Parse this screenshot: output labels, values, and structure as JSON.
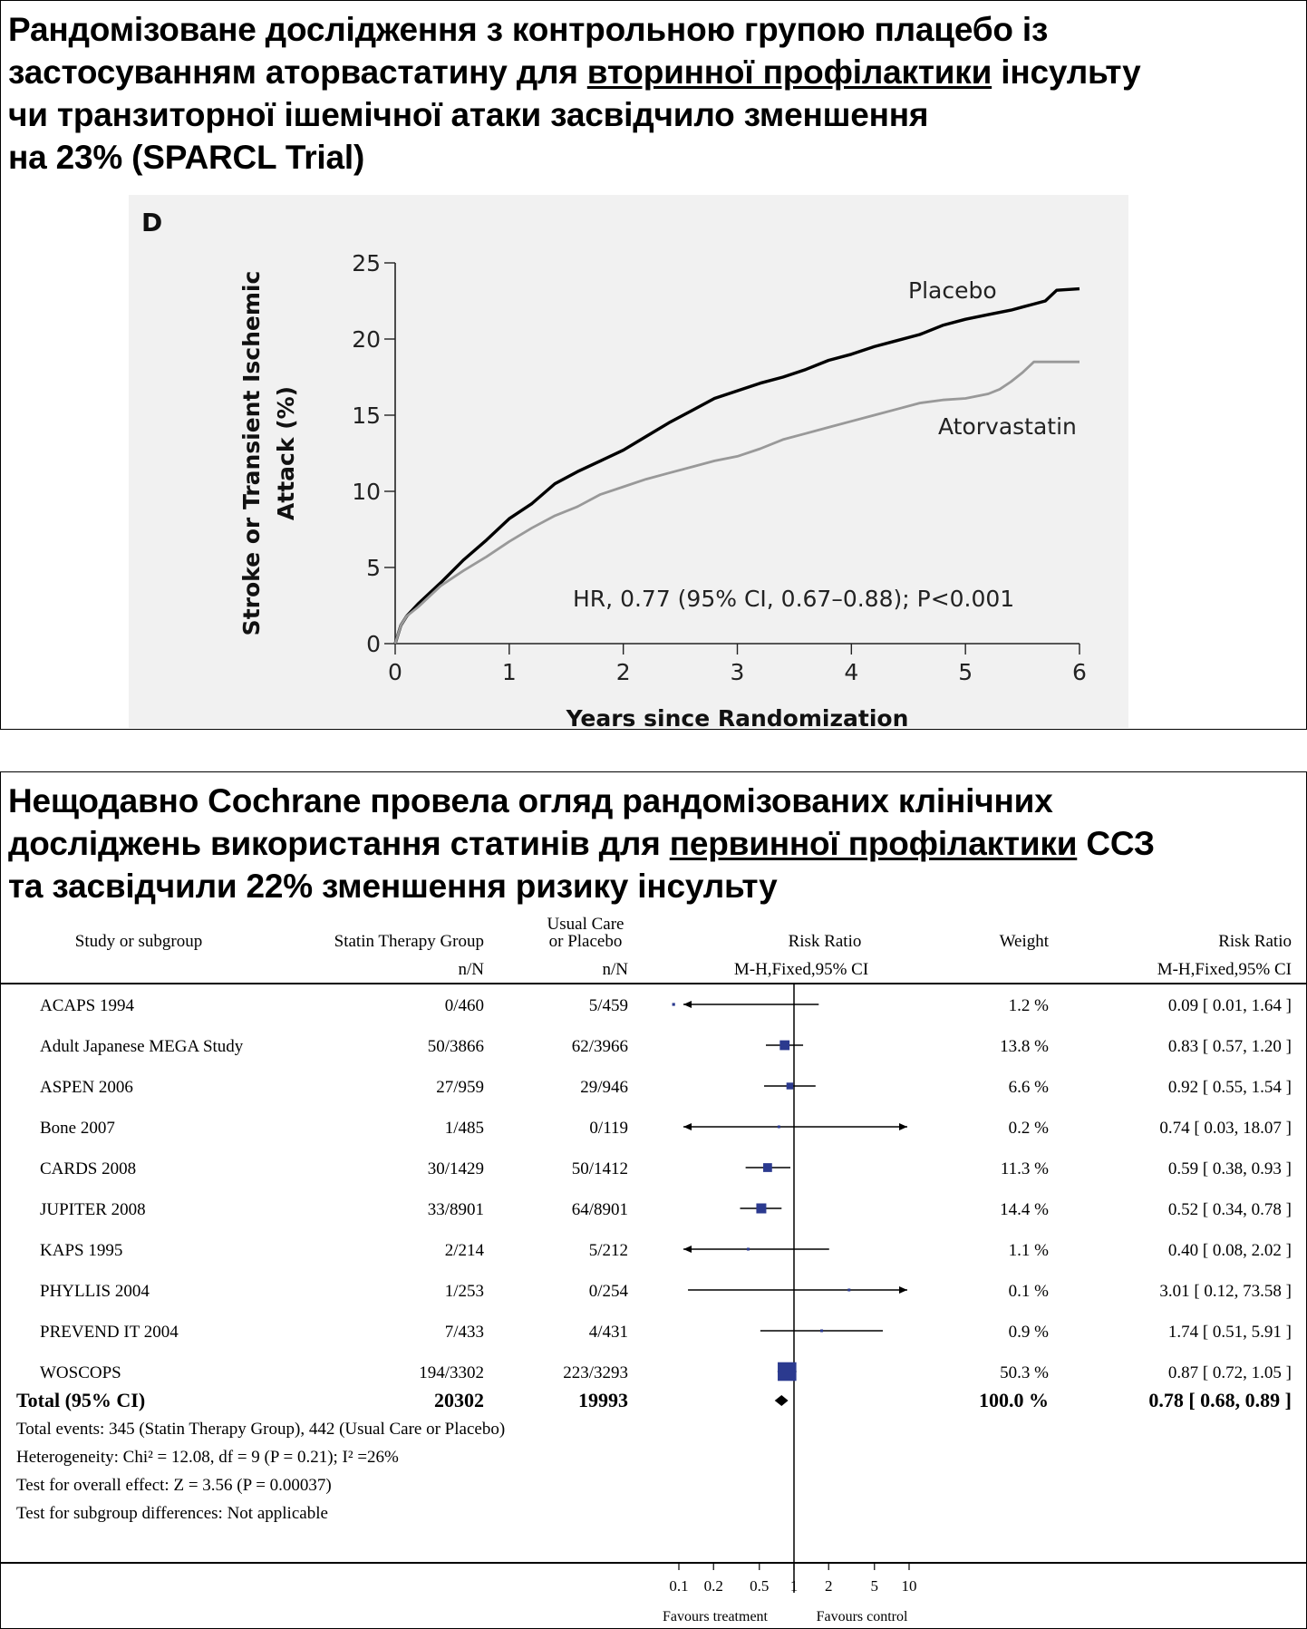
{
  "top_panel": {
    "title_line1": "Рандомізоване дослідження з контрольною групою плацебо із",
    "title_line2_pre": "застосуванням аторвастатину для ",
    "title_line2_underlined": "вторинної профілактики",
    "title_line2_post": " інсульту",
    "title_line3": "чи транзиторної ішемічної атаки засвідчило зменшення",
    "title_line4": "на 23% (SPARCL Trial)"
  },
  "bottom_panel": {
    "title_line1": "Нещодавно Cochrane провела огляд рандомізованих клінічних",
    "title_line2_pre": "досліджень використання статинів для ",
    "title_line2_underlined": "первинної профілактики",
    "title_line2_post": " ССЗ",
    "title_line3": "та засвідчили 22% зменшення ризику інсульту"
  },
  "chart_data": [
    {
      "type": "line",
      "panel_label": "D",
      "xlabel": "Years since Randomization",
      "ylabel_line1": "Stroke or Transient Ischemic",
      "ylabel_line2": "Attack (%)",
      "xlim": [
        0,
        6
      ],
      "ylim": [
        0,
        25
      ],
      "x_ticks": [
        0,
        1,
        2,
        3,
        4,
        5,
        6
      ],
      "y_ticks": [
        0,
        5,
        10,
        15,
        20,
        25
      ],
      "annotation": "HR, 0.77 (95% CI, 0.67–0.88); P<0.001",
      "grid": false,
      "series": [
        {
          "name": "Placebo",
          "color": "#000000",
          "x": [
            0,
            0.05,
            0.1,
            0.2,
            0.4,
            0.6,
            0.8,
            1.0,
            1.2,
            1.4,
            1.6,
            1.8,
            2.0,
            2.2,
            2.4,
            2.6,
            2.8,
            3.0,
            3.2,
            3.4,
            3.6,
            3.8,
            4.0,
            4.2,
            4.4,
            4.6,
            4.8,
            5.0,
            5.2,
            5.4,
            5.5,
            5.6,
            5.7,
            5.8,
            6.0
          ],
          "y": [
            0,
            1.2,
            1.8,
            2.6,
            4.0,
            5.5,
            6.8,
            8.2,
            9.2,
            10.5,
            11.3,
            12.0,
            12.7,
            13.6,
            14.5,
            15.3,
            16.1,
            16.6,
            17.1,
            17.5,
            18.0,
            18.6,
            19.0,
            19.5,
            19.9,
            20.3,
            20.9,
            21.3,
            21.6,
            21.9,
            22.1,
            22.3,
            22.5,
            23.2,
            23.3
          ]
        },
        {
          "name": "Atorvastatin",
          "color": "#999999",
          "x": [
            0,
            0.05,
            0.1,
            0.2,
            0.4,
            0.6,
            0.8,
            1.0,
            1.2,
            1.4,
            1.6,
            1.8,
            2.0,
            2.2,
            2.4,
            2.6,
            2.8,
            3.0,
            3.2,
            3.4,
            3.6,
            3.8,
            4.0,
            4.2,
            4.4,
            4.6,
            4.8,
            5.0,
            5.2,
            5.3,
            5.4,
            5.5,
            5.6,
            6.0
          ],
          "y": [
            0,
            1.2,
            1.8,
            2.4,
            3.8,
            4.8,
            5.7,
            6.7,
            7.6,
            8.4,
            9.0,
            9.8,
            10.3,
            10.8,
            11.2,
            11.6,
            12.0,
            12.3,
            12.8,
            13.4,
            13.8,
            14.2,
            14.6,
            15.0,
            15.4,
            15.8,
            16.0,
            16.1,
            16.4,
            16.7,
            17.2,
            17.8,
            18.5,
            18.5
          ]
        }
      ]
    },
    {
      "type": "table",
      "subtype": "forest",
      "headers": {
        "study": "Study or subgroup",
        "statin": "Statin Therapy Group",
        "usual_line1": "Usual Care",
        "usual_line2": "or Placebo",
        "rr": "Risk Ratio",
        "weight": "Weight",
        "rr_ci": "Risk Ratio",
        "statin_sub": "n/N",
        "usual_sub": "n/N",
        "rr_sub": "M-H,Fixed,95% CI",
        "rr_ci_sub": "M-H,Fixed,95% CI"
      },
      "rows": [
        {
          "study": "ACAPS 1994",
          "statin": "0/460",
          "usual": "5/459",
          "weight": "1.2 %",
          "rr_text": "0.09 [ 0.01, 1.64 ]",
          "rr": 0.09,
          "lo": 0.01,
          "hi": 1.64,
          "w": 1.2
        },
        {
          "study": "Adult Japanese MEGA Study",
          "statin": "50/3866",
          "usual": "62/3966",
          "weight": "13.8 %",
          "rr_text": "0.83 [ 0.57, 1.20 ]",
          "rr": 0.83,
          "lo": 0.57,
          "hi": 1.2,
          "w": 13.8
        },
        {
          "study": "ASPEN 2006",
          "statin": "27/959",
          "usual": "29/946",
          "weight": "6.6 %",
          "rr_text": "0.92 [ 0.55, 1.54 ]",
          "rr": 0.92,
          "lo": 0.55,
          "hi": 1.54,
          "w": 6.6
        },
        {
          "study": "Bone 2007",
          "statin": "1/485",
          "usual": "0/119",
          "weight": "0.2 %",
          "rr_text": "0.74 [ 0.03, 18.07 ]",
          "rr": 0.74,
          "lo": 0.03,
          "hi": 18.07,
          "w": 0.2
        },
        {
          "study": "CARDS 2008",
          "statin": "30/1429",
          "usual": "50/1412",
          "weight": "11.3 %",
          "rr_text": "0.59 [ 0.38, 0.93 ]",
          "rr": 0.59,
          "lo": 0.38,
          "hi": 0.93,
          "w": 11.3
        },
        {
          "study": "JUPITER 2008",
          "statin": "33/8901",
          "usual": "64/8901",
          "weight": "14.4 %",
          "rr_text": "0.52 [ 0.34, 0.78 ]",
          "rr": 0.52,
          "lo": 0.34,
          "hi": 0.78,
          "w": 14.4
        },
        {
          "study": "KAPS 1995",
          "statin": "2/214",
          "usual": "5/212",
          "weight": "1.1 %",
          "rr_text": "0.40 [ 0.08, 2.02 ]",
          "rr": 0.4,
          "lo": 0.08,
          "hi": 2.02,
          "w": 1.1
        },
        {
          "study": "PHYLLIS 2004",
          "statin": "1/253",
          "usual": "0/254",
          "weight": "0.1 %",
          "rr_text": "3.01 [ 0.12, 73.58 ]",
          "rr": 3.01,
          "lo": 0.12,
          "hi": 73.58,
          "w": 0.1
        },
        {
          "study": "PREVEND IT 2004",
          "statin": "7/433",
          "usual": "4/431",
          "weight": "0.9 %",
          "rr_text": "1.74 [ 0.51, 5.91 ]",
          "rr": 1.74,
          "lo": 0.51,
          "hi": 5.91,
          "w": 0.9
        },
        {
          "study": "WOSCOPS",
          "statin": "194/3302",
          "usual": "223/3293",
          "weight": "50.3 %",
          "rr_text": "0.87 [ 0.72, 1.05 ]",
          "rr": 0.87,
          "lo": 0.72,
          "hi": 1.05,
          "w": 50.3
        }
      ],
      "total": {
        "study": "Total (95% CI)",
        "statin": "20302",
        "usual": "19993",
        "weight": "100.0 %",
        "rr_text": "0.78 [ 0.68, 0.89 ]",
        "rr": 0.78,
        "lo": 0.68,
        "hi": 0.89
      },
      "footnotes": [
        "Total events: 345 (Statin Therapy Group), 442 (Usual Care or Placebo)",
        "Heterogeneity: Chi² = 12.08, df = 9 (P = 0.21); I² =26%",
        "Test for overall effect: Z = 3.56 (P = 0.00037)",
        "Test for subgroup differences: Not applicable"
      ],
      "x_scale": "log",
      "x_ticks": [
        0.1,
        0.2,
        0.5,
        1,
        2,
        5,
        10
      ],
      "x_tick_labels": [
        "0.1",
        "0.2",
        "0.5",
        "1",
        "2",
        "5",
        "10"
      ],
      "favours_left": "Favours treatment",
      "favours_right": "Favours control",
      "marker_color": "#2b3a8f"
    }
  ]
}
